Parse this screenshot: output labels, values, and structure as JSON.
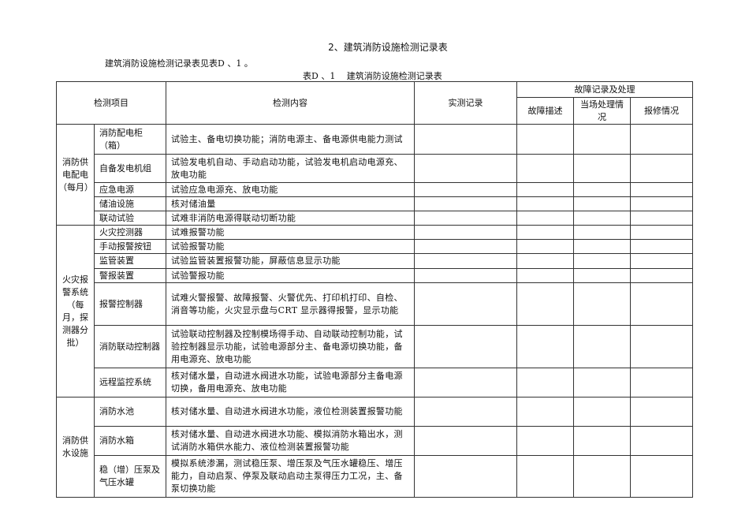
{
  "title": "2、建筑消防设施检测记录表",
  "intro": "建筑消防设施检测记录表见表D 、1 。",
  "caption": "表D 、1　 建筑消防设施检测记录表",
  "header": {
    "item": "检测项目",
    "content": "检测内容",
    "record": "实测记录",
    "fault_group": "故障记录及处理",
    "fault_desc": "故障描述",
    "onsite": "当场处理情况",
    "repair": "报修情况"
  },
  "groups": [
    {
      "name": "消防供电配电（每月）",
      "items": [
        {
          "item": "消防配电柜（箱）",
          "content": "试验主、备电切换功能；消防电源主、备电源供电能力测试"
        },
        {
          "item": "自备发电机组",
          "content": "试验发电机自动、手动启动功能，试验发电机启动电源充、放电功能"
        },
        {
          "item": "应急电源",
          "content": "试验应急电源充、放电功能"
        },
        {
          "item": "储油设施",
          "content": "核对储油量"
        },
        {
          "item": "联动试验",
          "content": "试难非消防电源得联动切断功能"
        }
      ]
    },
    {
      "name": "火灾报警系统（每月，探测器分批）",
      "items": [
        {
          "item": "火灾控测器",
          "content": "试难报警功能"
        },
        {
          "item": "手动报警按钮",
          "content": "试验报警功能"
        },
        {
          "item": "监管装置",
          "content": "试验监管装置报警功能，屏蔽信息显示功能"
        },
        {
          "item": "警报装置",
          "content": "试验警报功能"
        },
        {
          "item": "报警控制器",
          "content": "试难火警报警、故障报警、火警优先、打印机打印、自检、消音等功能，火灾显示盘与CRT 显示器得报警，显示功能"
        },
        {
          "item": "消防联动控制器",
          "content": "试验联动控制器及控制模场得手动、自动联动控制功能，试验控制器显示功能，试验电源部分主、备电源切换功能，备用电源充、放电功能"
        },
        {
          "item": "远程监控系统",
          "content": "核对储水量，自动进水阀进水功能，试验电源部分主备电源切换，备用电源充、放电功能"
        }
      ]
    },
    {
      "name": "消防供水设施",
      "items": [
        {
          "item": "消防水池",
          "content": "核对储水量、自动进水阀进水功能，液位检测装置报警功能"
        },
        {
          "item": "消防水箱",
          "content": "核对储水量、自动进水阀进水功能、模拟消防水箱出水，测试消防水箱供水能力、液位检测装置报警功能"
        },
        {
          "item": "稳（增）压泵及气压水罐",
          "content": "模拟系统渗漏，测试稳压泵、增压泵及气压水罐稳压、增压能力，自动启泵、停泵及联动启动主泵得压力工况，主、备泵切换功能"
        }
      ]
    }
  ]
}
